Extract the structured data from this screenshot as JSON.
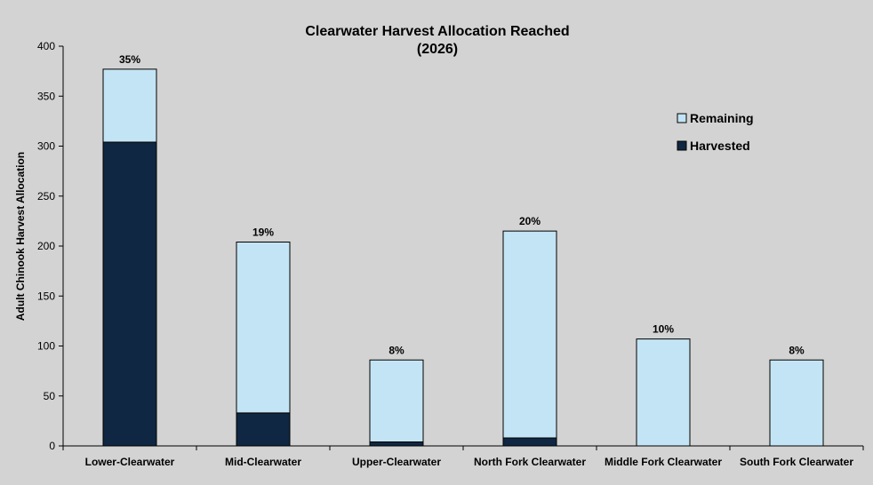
{
  "chart_data": {
    "type": "bar",
    "stacked": true,
    "title": "Clearwater Harvest Allocation Reached",
    "subtitle": "(2026)",
    "xlabel": "",
    "ylabel": "Adult Chinook Harvest Allocation",
    "ylim": [
      0,
      400
    ],
    "yticks": [
      0,
      50,
      100,
      150,
      200,
      250,
      300,
      350,
      400
    ],
    "grid": false,
    "legend_position": "right",
    "categories": [
      "Lower-Clearwater",
      "Mid-Clearwater",
      "Upper-Clearwater",
      "North Fork Clearwater",
      "Middle Fork Clearwater",
      "South Fork Clearwater"
    ],
    "series": [
      {
        "name": "Harvested",
        "color": "#0f2742",
        "values": [
          304,
          33,
          4,
          8,
          0,
          0
        ]
      },
      {
        "name": "Remaining",
        "color": "#c3e4f4",
        "values": [
          73,
          171,
          82,
          207,
          107,
          86
        ]
      }
    ],
    "data_labels": [
      "35%",
      "19%",
      "8%",
      "20%",
      "10%",
      "8%"
    ]
  }
}
